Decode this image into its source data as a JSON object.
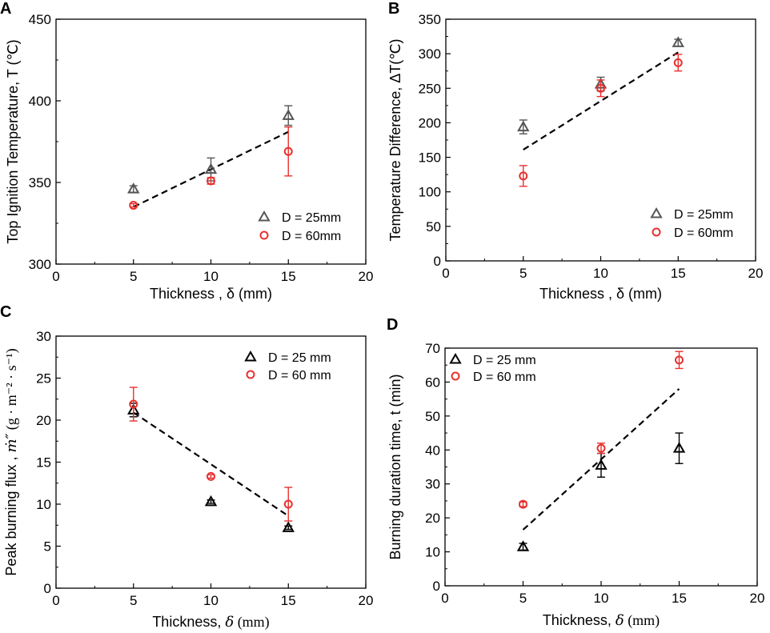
{
  "chart_data": [
    {
      "panel": "A",
      "type": "scatter",
      "title": "",
      "xlabel": "Thickness , δ (mm)",
      "ylabel": "Top Ignition Temperature, T (℃)",
      "xlim": [
        0,
        20
      ],
      "ylim": [
        300,
        450
      ],
      "xticks": [
        0,
        5,
        10,
        15,
        20
      ],
      "yticks": [
        300,
        350,
        400,
        450
      ],
      "legend_position": "bottom-right",
      "legend_x_hint": "right",
      "series": [
        {
          "name": "D = 25mm",
          "marker": "triangle",
          "color": "#555555",
          "x": [
            5,
            10,
            15
          ],
          "y": [
            346,
            358,
            391
          ],
          "err": [
            2,
            7,
            6
          ]
        },
        {
          "name": "D = 60mm",
          "marker": "circle",
          "color": "#e8312f",
          "x": [
            5,
            10,
            15
          ],
          "y": [
            336,
            351,
            369
          ],
          "err": [
            1,
            2,
            15
          ]
        }
      ],
      "fit": {
        "x": [
          5,
          15
        ],
        "y": [
          335,
          381
        ]
      }
    },
    {
      "panel": "B",
      "type": "scatter",
      "title": "",
      "xlabel": "Thickness , δ (mm)",
      "ylabel": "Temperature Difference, ΔT(℃)",
      "xlim": [
        0,
        20
      ],
      "ylim": [
        0,
        350
      ],
      "xticks": [
        0,
        5,
        10,
        15,
        20
      ],
      "yticks": [
        0,
        50,
        100,
        150,
        200,
        250,
        300,
        350
      ],
      "legend_position": "bottom-right",
      "series": [
        {
          "name": "D = 25mm",
          "marker": "triangle",
          "color": "#555555",
          "x": [
            5,
            10,
            15
          ],
          "y": [
            194,
            256,
            316
          ],
          "err": [
            10,
            10,
            5
          ]
        },
        {
          "name": "D = 60mm",
          "marker": "circle",
          "color": "#e8312f",
          "x": [
            5,
            10,
            15
          ],
          "y": [
            123,
            250,
            287
          ],
          "err": [
            15,
            12,
            12
          ]
        }
      ],
      "fit": {
        "x": [
          5,
          15
        ],
        "y": [
          161,
          302
        ]
      }
    },
    {
      "panel": "C",
      "type": "scatter",
      "title": "",
      "xlabel": "Thickness,",
      "xlabel_symbol": "δ",
      "xlabel_unit": "(mm)",
      "ylabel": "Peak burning flux ,",
      "ylabel_symbol": "ṁ″",
      "ylabel_unit": "(g · m⁻² · s⁻¹)",
      "xlim": [
        0,
        20
      ],
      "ylim": [
        0,
        30
      ],
      "xticks": [
        0,
        5,
        10,
        15,
        20
      ],
      "yticks": [
        0,
        5,
        10,
        15,
        20,
        25,
        30
      ],
      "legend_position": "top-right",
      "series": [
        {
          "name": "D = 25 mm",
          "marker": "triangle",
          "color": "#000000",
          "x": [
            5,
            10,
            15
          ],
          "y": [
            21.2,
            10.3,
            7.2
          ],
          "err": [
            0.8,
            0.2,
            0.2
          ]
        },
        {
          "name": "D = 60 mm",
          "marker": "circle",
          "color": "#e8312f",
          "x": [
            5,
            10,
            15
          ],
          "y": [
            21.9,
            13.3,
            10
          ],
          "err": [
            2,
            0.2,
            2
          ]
        }
      ],
      "fit": {
        "x": [
          5,
          15
        ],
        "y": [
          20.9,
          8.6
        ]
      }
    },
    {
      "panel": "D",
      "type": "scatter",
      "title": "",
      "xlabel": "Thickness,",
      "xlabel_symbol": "δ",
      "xlabel_unit": "(mm)",
      "ylabel": "Burning duration time, t (min)",
      "xlim": [
        0,
        20
      ],
      "ylim": [
        0,
        70
      ],
      "xticks": [
        0,
        5,
        10,
        15,
        20
      ],
      "yticks": [
        0,
        10,
        20,
        30,
        40,
        50,
        60,
        70
      ],
      "legend_position": "top-left",
      "series": [
        {
          "name": "D = 25 mm",
          "marker": "triangle",
          "color": "#000000",
          "x": [
            5,
            10,
            15
          ],
          "y": [
            11.5,
            35.5,
            40.5
          ],
          "err": [
            1,
            3.5,
            4.5
          ]
        },
        {
          "name": "D = 60 mm",
          "marker": "circle",
          "color": "#e8312f",
          "x": [
            5,
            10,
            15
          ],
          "y": [
            24,
            40.5,
            66.5
          ],
          "err": [
            0.7,
            1.5,
            2.5
          ]
        }
      ],
      "fit": {
        "x": [
          5,
          15
        ],
        "y": [
          16.5,
          58
        ]
      }
    }
  ]
}
